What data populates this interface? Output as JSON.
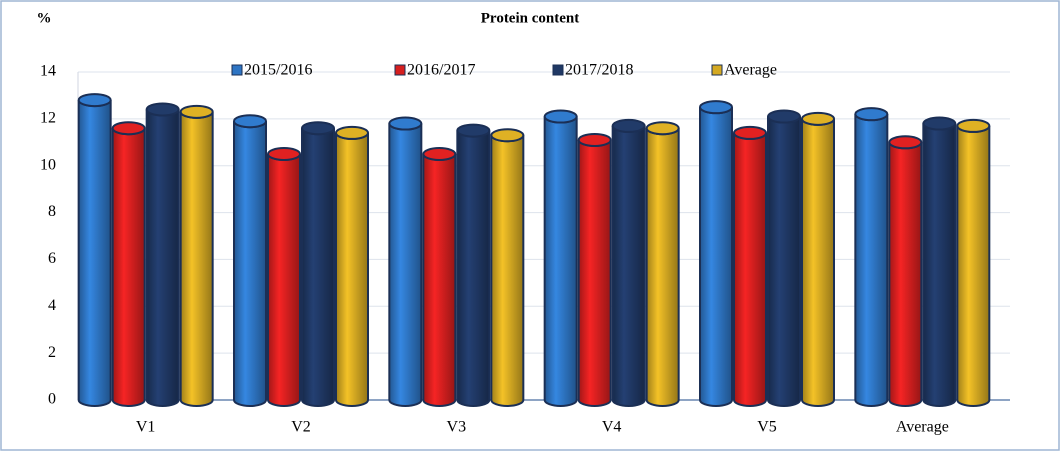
{
  "chart_data": {
    "type": "bar",
    "title": "Protein content",
    "y_label": "%",
    "categories": [
      "V1",
      "V2",
      "V3",
      "V4",
      "V5",
      "Average"
    ],
    "series": [
      {
        "name": "2015/2016",
        "color": "#2e75c4",
        "values": [
          12.8,
          11.9,
          11.8,
          12.1,
          12.5,
          12.2
        ]
      },
      {
        "name": "2016/2017",
        "color": "#d61f1f",
        "values": [
          11.6,
          10.5,
          10.5,
          11.1,
          11.4,
          11.0
        ]
      },
      {
        "name": "2017/2018",
        "color": "#1f3864",
        "values": [
          12.4,
          11.6,
          11.5,
          11.7,
          12.1,
          11.8
        ]
      },
      {
        "name": "Average",
        "color": "#d4a922",
        "values": [
          12.3,
          11.4,
          11.3,
          11.6,
          12.0,
          11.7
        ]
      }
    ],
    "ylim": [
      0,
      14
    ],
    "yticks": [
      0,
      2,
      4,
      6,
      8,
      10,
      12,
      14
    ],
    "grid": true,
    "legend": "top"
  }
}
